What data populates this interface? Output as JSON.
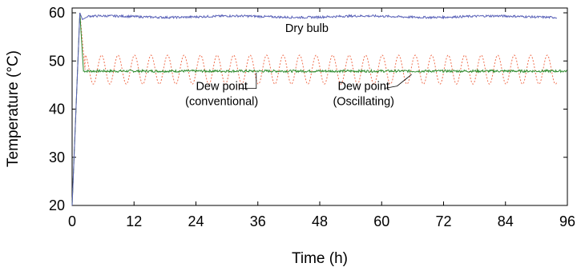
{
  "chart_data": {
    "type": "line",
    "xlabel": "Time (h)",
    "ylabel": "Temperature (°C)",
    "xlim": [
      0,
      96
    ],
    "ylim": [
      20,
      61
    ],
    "xticks": [
      0,
      12,
      24,
      36,
      48,
      60,
      72,
      84,
      96
    ],
    "yticks": [
      20,
      30,
      40,
      50,
      60
    ],
    "grid": false,
    "series": [
      {
        "color": "#5a62b8",
        "points": [
          [
            0,
            20
          ],
          [
            1.5,
            60
          ],
          [
            2,
            58.6
          ],
          [
            3,
            59.2
          ],
          [
            94,
            59.2
          ]
        ]
      },
      {
        "color": "#f07050",
        "dashed": true,
        "points": [
          [
            0,
            20
          ],
          [
            1.5,
            60
          ],
          [
            2.5,
            48.2
          ],
          [
            95,
            48.2
          ]
        ],
        "oscillation": {
          "start": 2.5,
          "end": 94,
          "center": 48.2,
          "amplitude": 3,
          "period": 3.2
        }
      },
      {
        "color": "#2e8b2e",
        "points": [
          [
            0,
            20
          ],
          [
            1.5,
            60
          ],
          [
            2.2,
            47.9
          ],
          [
            96,
            47.9
          ]
        ]
      }
    ],
    "annotations": [
      {
        "text": "Dry bulb",
        "x": 45.5,
        "y": 56
      },
      {
        "lines": [
          "Dew point",
          "(conventional)"
        ],
        "x": 29,
        "y": [
          44,
          40.8
        ],
        "pointer": [
          [
            32.5,
            44.3
          ],
          [
            35.7,
            44.3
          ],
          [
            35.7,
            47.6
          ]
        ]
      },
      {
        "lines": [
          "Dew point",
          "(Oscillating)"
        ],
        "x": 56.5,
        "y": [
          44,
          40.8
        ],
        "pointer": [
          [
            60.5,
            44.3
          ],
          [
            63,
            44.8
          ],
          [
            65.8,
            47.2
          ]
        ]
      }
    ]
  }
}
